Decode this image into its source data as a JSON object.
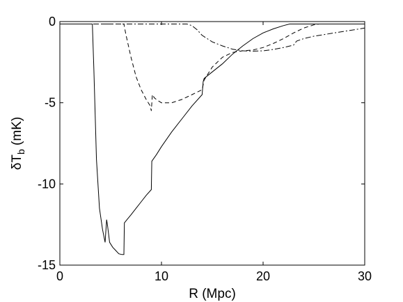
{
  "chart_data": {
    "type": "line",
    "title": "",
    "xlabel": "R (Mpc)",
    "ylabel": {
      "main": "δT",
      "subscript": "b",
      "unit": " (mK)"
    },
    "xlim": [
      0,
      30
    ],
    "ylim": [
      -15,
      0
    ],
    "grid": false,
    "legend": "none",
    "x_ticks": [
      0,
      10,
      20,
      30
    ],
    "y_ticks": [
      0,
      -5,
      -10,
      -15
    ],
    "series": [
      {
        "style": "solid",
        "x": [
          0,
          3.2,
          3.35,
          3.6,
          3.9,
          4.2,
          4.45,
          4.6,
          4.7,
          4.9,
          5.2,
          5.5,
          5.8,
          6.1,
          6.3,
          6.35,
          6.6,
          7.0,
          7.5,
          8.0,
          8.5,
          9.0,
          9.05,
          9.5,
          10.0,
          11.0,
          12.0,
          13.0,
          14.0,
          14.1,
          14.2,
          15.0,
          16.0,
          17.0,
          18.0,
          19.0,
          20.0,
          21.0,
          22.0,
          22.6,
          23.0,
          25.0,
          30.0
        ],
        "y": [
          -0.15,
          -0.15,
          -3.0,
          -8.5,
          -11.5,
          -12.8,
          -13.6,
          -12.2,
          -12.6,
          -13.6,
          -13.9,
          -14.1,
          -14.3,
          -14.35,
          -14.35,
          -12.4,
          -12.2,
          -11.9,
          -11.5,
          -11.1,
          -10.7,
          -10.35,
          -8.6,
          -8.2,
          -7.7,
          -6.8,
          -6.0,
          -5.2,
          -4.5,
          -3.7,
          -3.5,
          -3.1,
          -2.6,
          -2.0,
          -1.5,
          -1.05,
          -0.7,
          -0.45,
          -0.25,
          -0.15,
          -0.15,
          -0.15,
          -0.15
        ]
      },
      {
        "style": "dashed",
        "x": [
          0,
          6.3,
          6.5,
          7.0,
          7.5,
          8.0,
          8.5,
          8.9,
          9.0,
          9.1,
          9.3,
          9.6,
          10.0,
          10.5,
          11.0,
          12.0,
          13.0,
          14.0,
          14.2,
          15.0,
          16.0,
          17.0,
          18.0,
          19.0,
          20.0,
          21.0,
          22.0,
          23.0,
          24.0,
          25.0,
          25.5,
          30.0
        ],
        "y": [
          -0.15,
          -0.15,
          -0.8,
          -2.2,
          -3.4,
          -4.2,
          -4.8,
          -5.2,
          -5.5,
          -4.5,
          -4.7,
          -4.85,
          -5.0,
          -5.0,
          -5.0,
          -4.8,
          -4.5,
          -4.2,
          -3.6,
          -2.8,
          -2.2,
          -1.9,
          -1.8,
          -1.75,
          -1.6,
          -1.35,
          -1.05,
          -0.7,
          -0.4,
          -0.2,
          -0.15,
          -0.15
        ]
      },
      {
        "style": "dashdot",
        "x": [
          0,
          12.5,
          13.0,
          13.5,
          14.0,
          15.0,
          16.0,
          17.0,
          18.0,
          19.0,
          20.0,
          21.0,
          22.0,
          23.0,
          23.3,
          24.0,
          25.0,
          26.0,
          27.0,
          28.0,
          29.0,
          30.0
        ],
        "y": [
          -0.15,
          -0.15,
          -0.25,
          -0.5,
          -0.85,
          -1.25,
          -1.5,
          -1.7,
          -1.8,
          -1.82,
          -1.8,
          -1.72,
          -1.6,
          -1.45,
          -1.2,
          -1.05,
          -0.9,
          -0.8,
          -0.7,
          -0.6,
          -0.5,
          -0.4
        ]
      }
    ]
  }
}
